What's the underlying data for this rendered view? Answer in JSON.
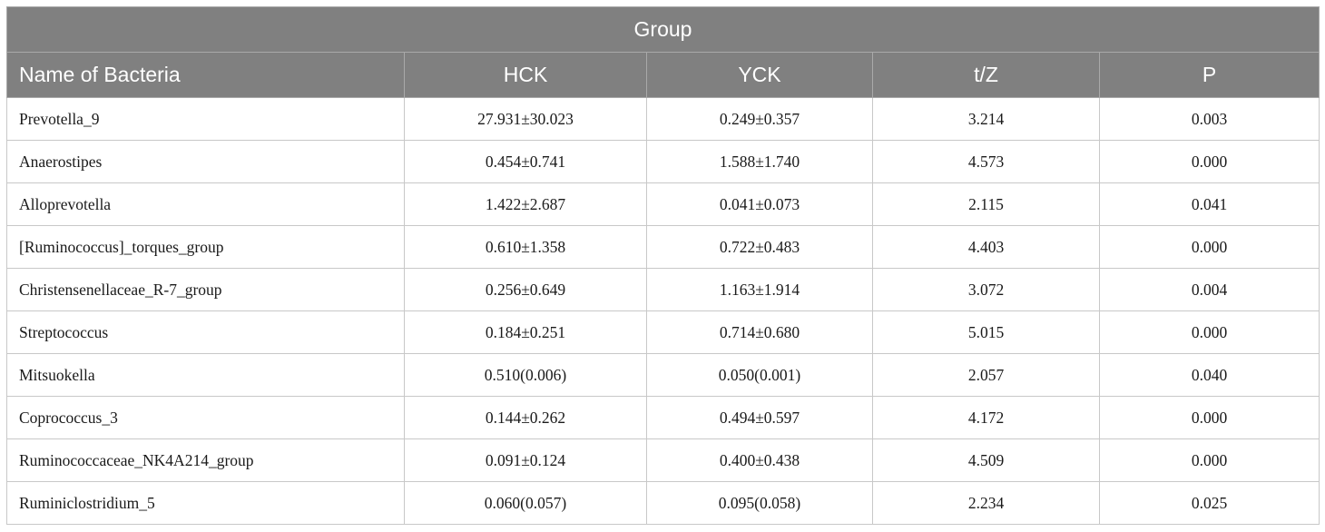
{
  "table": {
    "group_header": "Group",
    "columns": [
      "Name of Bacteria",
      "HCK",
      "YCK",
      "t/Z",
      "P"
    ],
    "rows": [
      [
        "Prevotella_9",
        "27.931±30.023",
        "0.249±0.357",
        "3.214",
        "0.003"
      ],
      [
        "Anaerostipes",
        "0.454±0.741",
        "1.588±1.740",
        "4.573",
        "0.000"
      ],
      [
        "Alloprevotella",
        "1.422±2.687",
        "0.041±0.073",
        "2.115",
        "0.041"
      ],
      [
        "[Ruminococcus]_torques_group",
        "0.610±1.358",
        "0.722±0.483",
        "4.403",
        "0.000"
      ],
      [
        "Christensenellaceae_R-7_group",
        "0.256±0.649",
        "1.163±1.914",
        "3.072",
        "0.004"
      ],
      [
        "Streptococcus",
        "0.184±0.251",
        "0.714±0.680",
        "5.015",
        "0.000"
      ],
      [
        "Mitsuokella",
        "0.510(0.006)",
        "0.050(0.001)",
        "2.057",
        "0.040"
      ],
      [
        "Coprococcus_3",
        "0.144±0.262",
        "0.494±0.597",
        "4.172",
        "0.000"
      ],
      [
        "Ruminococcaceae_NK4A214_group",
        "0.091±0.124",
        "0.400±0.438",
        "4.509",
        "0.000"
      ],
      [
        "Ruminiclostridium_5",
        "0.060(0.057)",
        "0.095(0.058)",
        "2.234",
        "0.025"
      ]
    ]
  }
}
